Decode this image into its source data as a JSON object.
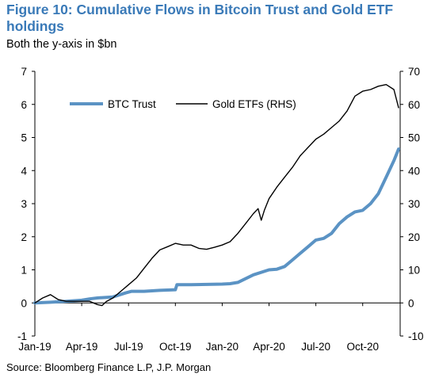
{
  "header": {
    "title": "Figure 10: Cumulative Flows in Bitcoin Trust and Gold ETF holdings",
    "subtitle": "Both the y-axis in $bn",
    "source": "Source: Bloomberg Finance L.P, J.P. Morgan"
  },
  "colors": {
    "btc": "#5b93c4",
    "gold": "#000000",
    "title": "#3a7ab8"
  },
  "chart_data": {
    "type": "line",
    "title": "Figure 10: Cumulative Flows in Bitcoin Trust and Gold ETF holdings",
    "subtitle": "Both the y-axis in $bn",
    "x_ticks": [
      "Jan-19",
      "Apr-19",
      "Jul-19",
      "Oct-19",
      "Jan-20",
      "Apr-20",
      "Jul-20",
      "Oct-20"
    ],
    "x_range": [
      0,
      23.4
    ],
    "y_left": {
      "ticks": [
        "-1",
        "0",
        "1",
        "2",
        "3",
        "4",
        "5",
        "6",
        "7"
      ],
      "range": [
        -1,
        7
      ]
    },
    "y_right": {
      "ticks": [
        "-10",
        "0",
        "10",
        "20",
        "30",
        "40",
        "50",
        "60",
        "70"
      ],
      "range": [
        -10,
        70
      ]
    },
    "legend_position": "top-left",
    "grid": false,
    "series": [
      {
        "name": "BTC Trust",
        "axis": "left",
        "x_unit": "months since Jan-19",
        "x": [
          0,
          1,
          2,
          3,
          3.5,
          4,
          5,
          5.8,
          6.2,
          7,
          8,
          9.0,
          9.1,
          10,
          11,
          12,
          12.5,
          13,
          14,
          15,
          15.5,
          16,
          16.5,
          17,
          17.5,
          18,
          18.5,
          19,
          19.5,
          20,
          20.5,
          21,
          21.5,
          22,
          22.5,
          23,
          23.3
        ],
        "values": [
          0.0,
          0.02,
          0.05,
          0.08,
          0.12,
          0.15,
          0.18,
          0.3,
          0.35,
          0.35,
          0.38,
          0.4,
          0.55,
          0.55,
          0.56,
          0.57,
          0.58,
          0.62,
          0.85,
          1.0,
          1.02,
          1.1,
          1.3,
          1.5,
          1.7,
          1.9,
          1.95,
          2.1,
          2.4,
          2.6,
          2.75,
          2.8,
          3.0,
          3.3,
          3.8,
          4.3,
          4.65
        ]
      },
      {
        "name": "Gold ETFs (RHS)",
        "axis": "right",
        "x_unit": "months since Jan-19",
        "x": [
          0,
          0.5,
          1,
          1.5,
          2,
          2.5,
          3,
          3.5,
          4,
          4.3,
          4.6,
          5,
          5.5,
          6,
          6.5,
          7,
          7.5,
          8,
          8.5,
          9,
          9.5,
          10,
          10.5,
          11,
          11.5,
          12,
          12.5,
          13,
          13.5,
          14,
          14.3,
          14.5,
          14.7,
          15,
          15.5,
          16,
          16.5,
          17,
          17.5,
          18,
          18.5,
          19,
          19.5,
          20,
          20.5,
          21,
          21.5,
          22,
          22.5,
          23,
          23.3
        ],
        "values": [
          0,
          1.5,
          2.5,
          1.0,
          0.5,
          0.5,
          0.5,
          0.5,
          -0.5,
          -0.8,
          0.5,
          1.5,
          3.5,
          5.5,
          7.5,
          10.5,
          13.5,
          16.0,
          17.0,
          18.0,
          17.5,
          17.5,
          16.5,
          16.2,
          16.8,
          17.5,
          18.5,
          21.0,
          24.0,
          27.0,
          28.5,
          25.0,
          28.0,
          31.5,
          35.0,
          38.0,
          41.0,
          44.5,
          47.0,
          49.5,
          51.0,
          53.0,
          55.0,
          58.0,
          62.5,
          64.0,
          64.5,
          65.5,
          66.0,
          64.5,
          59.0
        ]
      }
    ]
  }
}
